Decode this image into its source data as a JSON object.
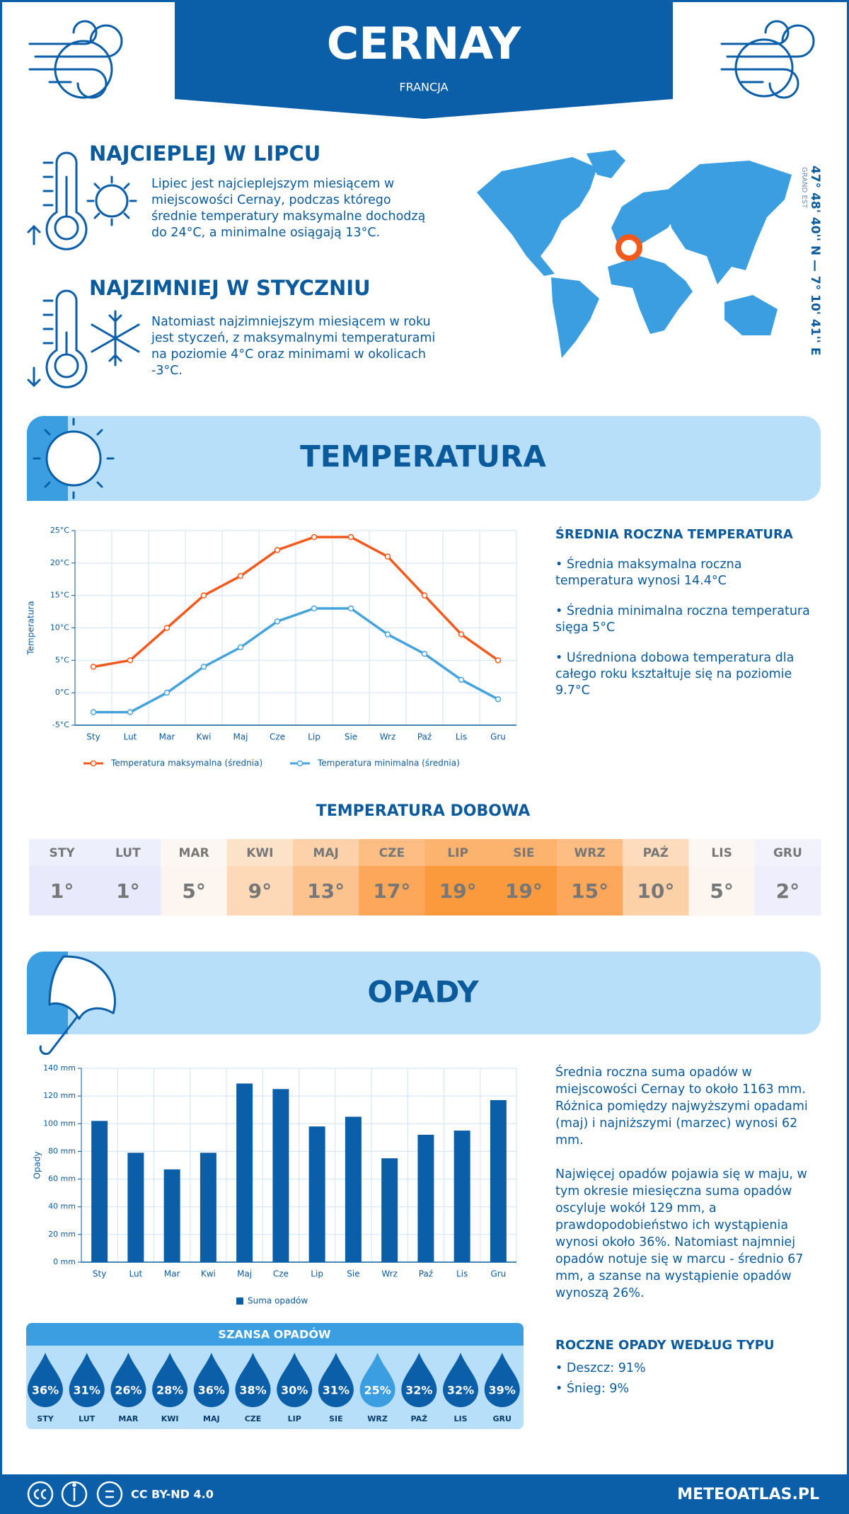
{
  "header": {
    "title": "CERNAY",
    "subtitle": "FRANCJA"
  },
  "hottest": {
    "title": "NAJCIEPLEJ W LIPCU",
    "text": "Lipiec jest najcieplejszym miesiącem w miejscowości Cernay, podczas którego średnie temperatury maksymalne dochodzą do 24°C, a minimalne osiągają 13°C."
  },
  "coldest": {
    "title": "NAJZIMNIEJ W STYCZNIU",
    "text": "Natomiast najzimniejszym miesiącem w roku jest styczeń, z maksymalnymi temperaturami na poziomie 4°C oraz minimami w okolicach -3°C."
  },
  "location": {
    "coordinates": "47° 48' 40'' N — 7° 10' 41'' E",
    "region": "GRAND EST"
  },
  "temperature_section": {
    "title": "TEMPERATURA",
    "summary_title": "ŚREDNIA ROCZNA TEMPERATURA",
    "bullets": [
      "• Średnia maksymalna roczna temperatura wynosi 14.4°C",
      "• Średnia minimalna roczna temperatura sięga 5°C",
      "• Uśredniona dobowa temperatura dla całego roku kształtuje się na poziomie 9.7°C"
    ]
  },
  "chart_data": [
    {
      "type": "line",
      "ylabel": "Temperatura",
      "categories": [
        "Sty",
        "Lut",
        "Mar",
        "Kwi",
        "Maj",
        "Cze",
        "Lip",
        "Sie",
        "Wrz",
        "Paź",
        "Lis",
        "Gru"
      ],
      "series": [
        {
          "name": "Temperatura maksymalna (średnia)",
          "color": "#f25a1d",
          "values": [
            4,
            5,
            10,
            15,
            18,
            22,
            24,
            24,
            21,
            15,
            9,
            5
          ]
        },
        {
          "name": "Temperatura minimalna (średnia)",
          "color": "#44a3dd",
          "values": [
            -3,
            -3,
            0,
            4,
            7,
            11,
            13,
            13,
            9,
            6,
            2,
            -1
          ]
        }
      ],
      "ylim": [
        -5,
        25
      ],
      "yticks": [
        {
          "value": -5,
          "label": "-5°C"
        },
        {
          "value": 0,
          "label": "0°C"
        },
        {
          "value": 5,
          "label": "5°C"
        },
        {
          "value": 10,
          "label": "10°C"
        },
        {
          "value": 15,
          "label": "15°C"
        },
        {
          "value": 20,
          "label": "20°C"
        },
        {
          "value": 25,
          "label": "25°C"
        }
      ],
      "grid": true
    },
    {
      "type": "bar",
      "ylabel": "Opady",
      "categories": [
        "Sty",
        "Lut",
        "Mar",
        "Kwi",
        "Maj",
        "Cze",
        "Lip",
        "Sie",
        "Wrz",
        "Paź",
        "Lis",
        "Gru"
      ],
      "series": [
        {
          "name": "Suma opadów",
          "color": "#0b5ea8",
          "values": [
            102,
            79,
            67,
            79,
            129,
            125,
            98,
            105,
            75,
            92,
            95,
            117
          ]
        }
      ],
      "ylim": [
        0,
        140
      ],
      "yticks": [
        {
          "value": 0,
          "label": "0 mm"
        },
        {
          "value": 20,
          "label": "20 mm"
        },
        {
          "value": 40,
          "label": "40 mm"
        },
        {
          "value": 60,
          "label": "60 mm"
        },
        {
          "value": 80,
          "label": "80 mm"
        },
        {
          "value": 100,
          "label": "100 mm"
        },
        {
          "value": 120,
          "label": "120 mm"
        },
        {
          "value": 140,
          "label": "140 mm"
        }
      ],
      "grid": true
    }
  ],
  "daily_temperature": {
    "title": "TEMPERATURA DOBOWA",
    "months": [
      "STY",
      "LUT",
      "MAR",
      "KWI",
      "MAJ",
      "CZE",
      "LIP",
      "SIE",
      "WRZ",
      "PAŹ",
      "LIS",
      "GRU"
    ],
    "values": [
      "1°",
      "1°",
      "5°",
      "9°",
      "13°",
      "17°",
      "19°",
      "19°",
      "15°",
      "10°",
      "5°",
      "2°"
    ],
    "colors": [
      "#e8eafc",
      "#e8eafc",
      "#fdf5ef",
      "#fdd9b8",
      "#fcc38f",
      "#fca75a",
      "#fb9a3c",
      "#fb9a3c",
      "#fca75a",
      "#fdd1a8",
      "#fdf5ef",
      "#eeeefc"
    ]
  },
  "precipitation_section": {
    "title": "OPADY",
    "paragraphs": [
      "Średnia roczna suma opadów w miejscowości Cernay to około 1163 mm. Różnica pomiędzy najwyższymi opadami (maj) i najniższymi (marzec) wynosi 62 mm.",
      "Najwięcej opadów pojawia się w maju, w tym okresie miesięczna suma opadów oscyluje wokół 129 mm, a prawdopodobieństwo ich wystąpienia wynosi około 36%. Natomiast najmniej opadów notuje się w marcu - średnio 67 mm, a szanse na wystąpienie opadów wynoszą 26%."
    ],
    "type_title": "ROCZNE OPADY WEDŁUG TYPU",
    "type_bullets": [
      "• Deszcz: 91%",
      "• Śnieg: 9%"
    ]
  },
  "precipitation_chance": {
    "title": "SZANSA OPADÓW",
    "months": [
      "STY",
      "LUT",
      "MAR",
      "KWI",
      "MAJ",
      "CZE",
      "LIP",
      "SIE",
      "WRZ",
      "PAŹ",
      "LIS",
      "GRU"
    ],
    "values": [
      "36%",
      "31%",
      "26%",
      "28%",
      "36%",
      "38%",
      "30%",
      "31%",
      "25%",
      "32%",
      "32%",
      "39%"
    ],
    "colors": [
      "#0b5ea8",
      "#0b5ea8",
      "#0b5ea8",
      "#0b5ea8",
      "#0b5ea8",
      "#0b5ea8",
      "#0b5ea8",
      "#0b5ea8",
      "#3a9ee0",
      "#0b5ea8",
      "#0b5ea8",
      "#0b5ea8"
    ]
  },
  "footer": {
    "license": "CC BY-ND 4.0",
    "site": "METEOATLAS.PL"
  }
}
